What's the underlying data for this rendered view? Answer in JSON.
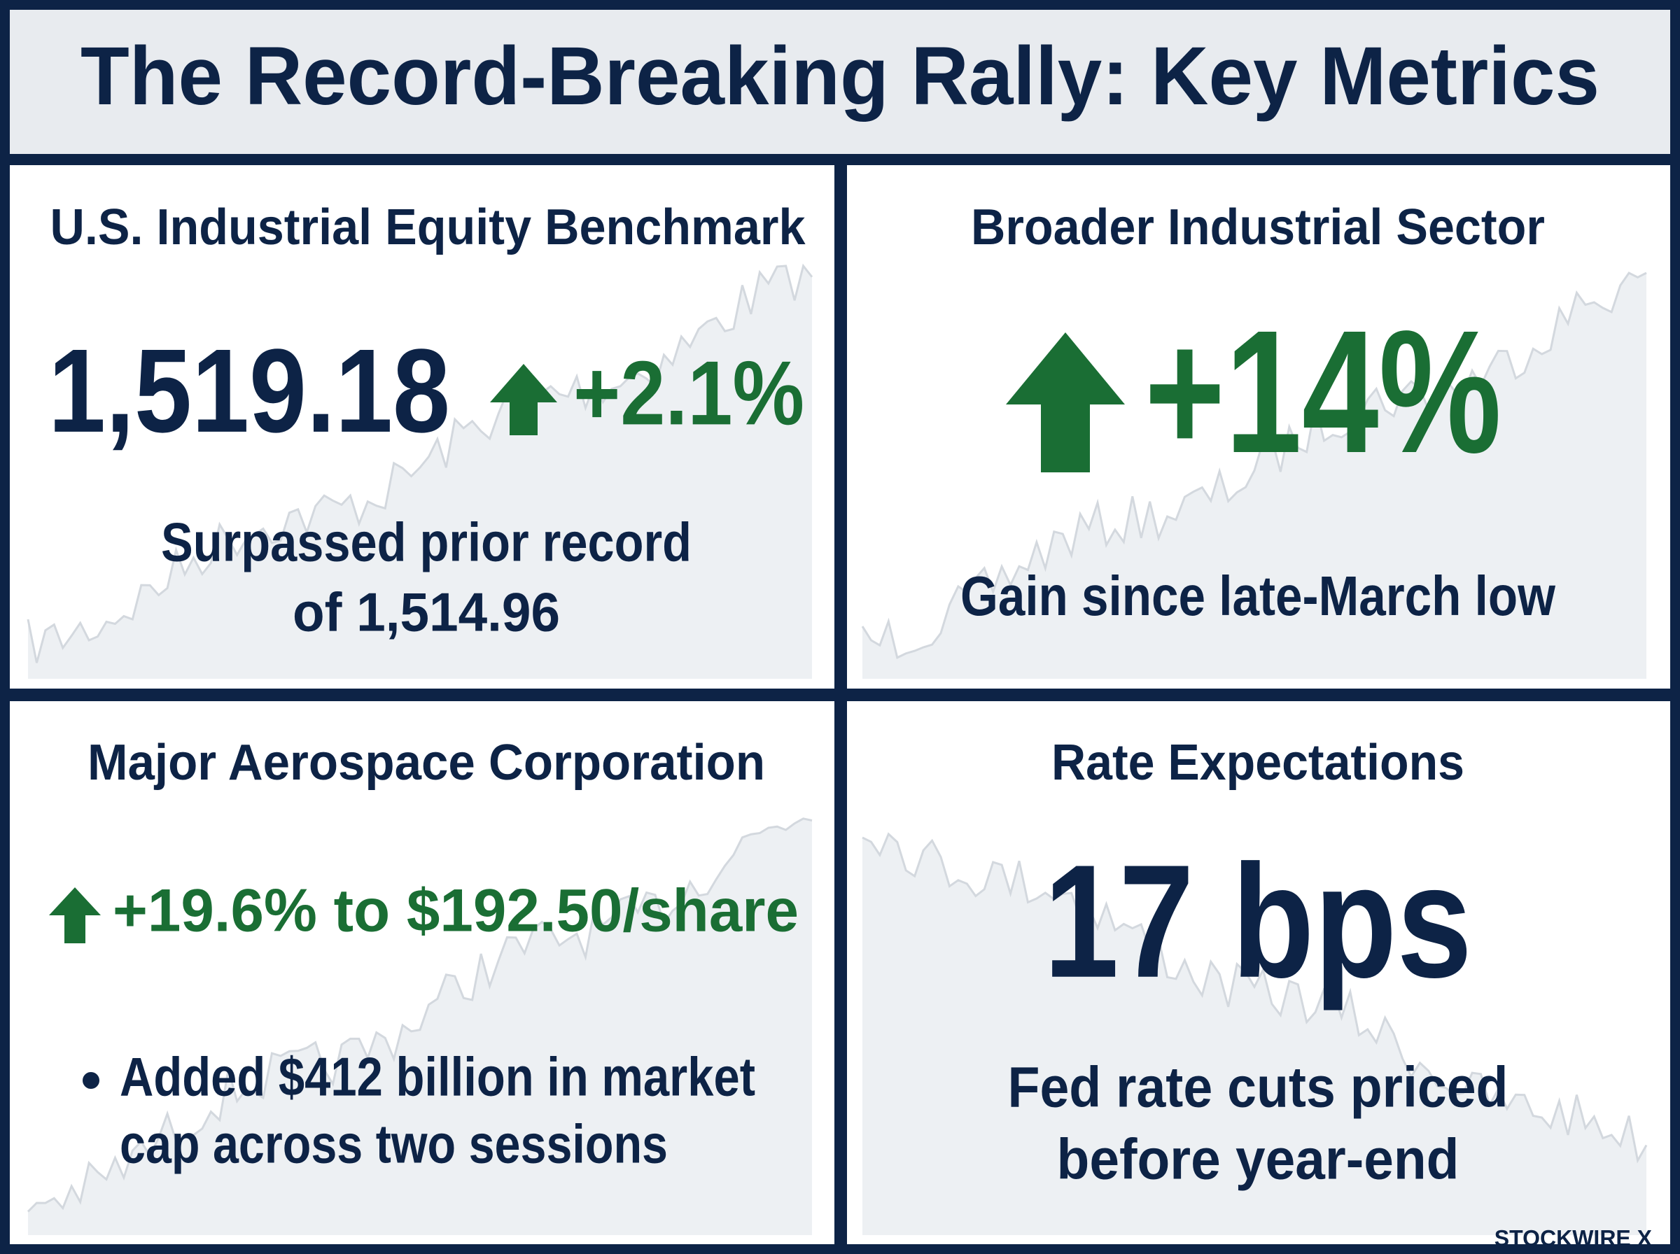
{
  "header": {
    "title": "The Record-Breaking Rally: Key Metrics"
  },
  "panels": [
    {
      "title": "U.S. Industrial Equity Benchmark",
      "value": "1,519.18",
      "change": "+2.1%",
      "note_lines": [
        "Surpassed prior record",
        "of 1,514.96"
      ]
    },
    {
      "title": "Broader Industrial Sector",
      "change": "+14%",
      "note_lines": [
        "Gain since late-March low"
      ]
    },
    {
      "title": "Major Aerospace Corporation",
      "change": "+19.6% to $192.50/share",
      "note_lines": [
        "Added $412 billion in market",
        "cap across two sessions"
      ]
    },
    {
      "title": "Rate Expectations",
      "value": "17 bps",
      "note_lines": [
        "Fed rate cuts priced",
        "before year-end"
      ]
    }
  ],
  "brand": "STOCKWIRE X"
}
